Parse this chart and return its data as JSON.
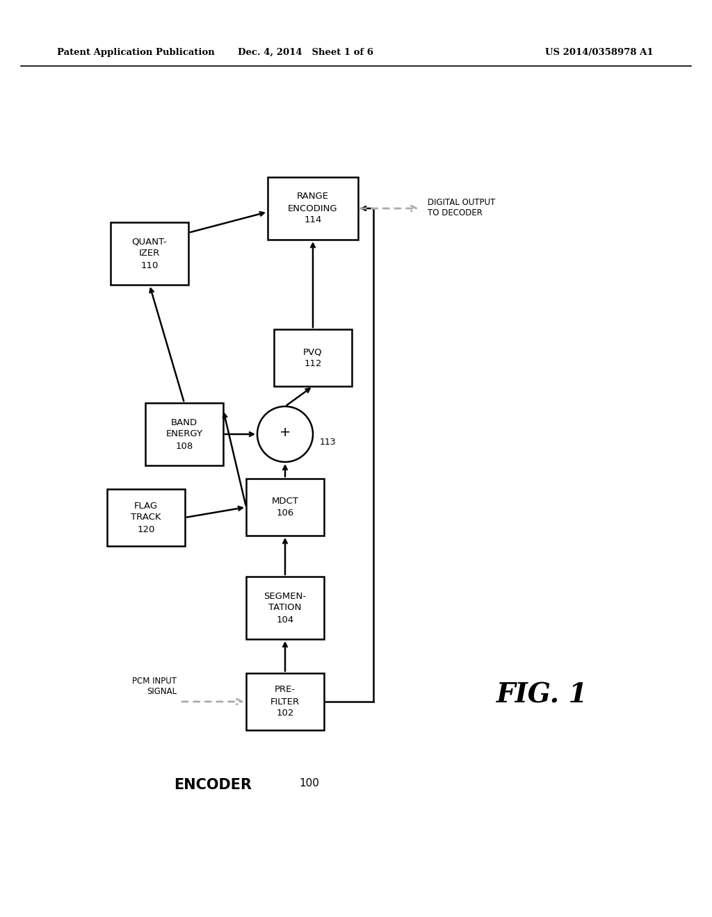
{
  "bg_color": "#ffffff",
  "header_left": "Patent Application Publication",
  "header_mid": "Dec. 4, 2014   Sheet 1 of 6",
  "header_right": "US 2014/0358978 A1",
  "fig_label": "FIG. 1",
  "encoder_label": "ENCODER",
  "encoder_number": "100"
}
